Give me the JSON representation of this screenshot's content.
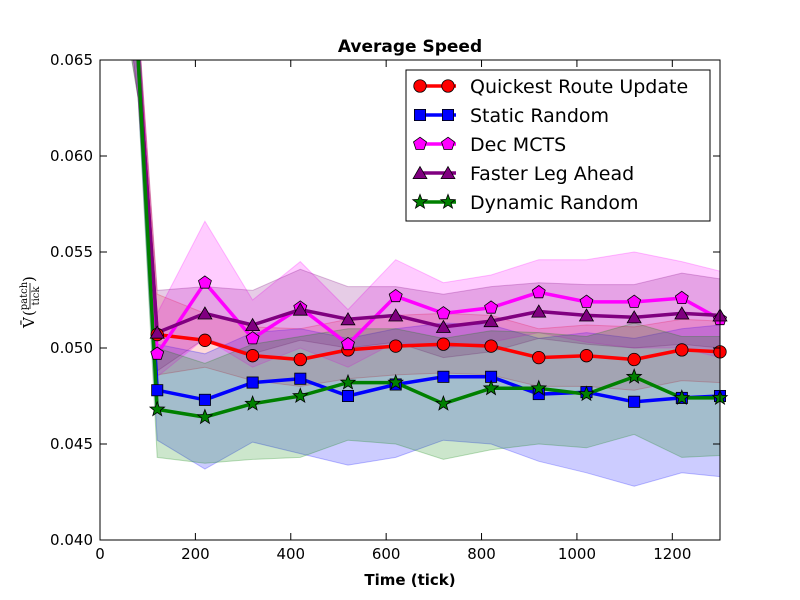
{
  "chart_data": {
    "type": "line",
    "title": "Average Speed",
    "xlabel": "Time (tick)",
    "ylabel": {
      "symbol": "V̄",
      "numerator": "patch",
      "denominator": "tick"
    },
    "xlim": [
      0,
      1300
    ],
    "ylim": [
      0.04,
      0.065
    ],
    "xticks": [
      0,
      200,
      400,
      600,
      800,
      1000,
      1200
    ],
    "yticks": [
      0.04,
      0.045,
      0.05,
      0.055,
      0.06,
      0.065
    ],
    "ytick_labels": [
      "0.040",
      "0.045",
      "0.050",
      "0.055",
      "0.060",
      "0.065"
    ],
    "legend_position": "top-right",
    "x": [
      120,
      220,
      320,
      420,
      520,
      620,
      720,
      820,
      920,
      1020,
      1120,
      1220,
      1300
    ],
    "series": [
      {
        "name": "Quickest Route Update",
        "color": "#ff0000",
        "marker": "circle",
        "start": [
          [
            60,
            0.069
          ],
          [
            80,
            0.065
          ]
        ],
        "values": [
          0.0507,
          0.0504,
          0.0496,
          0.0494,
          0.0499,
          0.0501,
          0.0502,
          0.0501,
          0.0495,
          0.0496,
          0.0494,
          0.0499,
          0.0498
        ],
        "lower": [
          0.0486,
          0.049,
          0.0483,
          0.048,
          0.0484,
          0.0486,
          0.0487,
          0.0486,
          0.048,
          0.048,
          0.0478,
          0.0483,
          0.0482
        ],
        "upper": [
          0.0528,
          0.0518,
          0.0511,
          0.051,
          0.0515,
          0.0517,
          0.0518,
          0.0517,
          0.051,
          0.0512,
          0.0511,
          0.0515,
          0.0514
        ],
        "band_opacity": 0.15
      },
      {
        "name": "Static Random",
        "color": "#0000ff",
        "marker": "square",
        "start": [
          [
            60,
            0.069
          ],
          [
            80,
            0.065
          ]
        ],
        "values": [
          0.0478,
          0.0473,
          0.0482,
          0.0484,
          0.0475,
          0.0481,
          0.0485,
          0.0485,
          0.0476,
          0.0477,
          0.0472,
          0.0474,
          0.0475
        ],
        "lower": [
          0.0452,
          0.0437,
          0.0451,
          0.0445,
          0.0439,
          0.0443,
          0.0452,
          0.045,
          0.0441,
          0.0435,
          0.0428,
          0.0435,
          0.0433
        ],
        "upper": [
          0.0502,
          0.0497,
          0.0508,
          0.051,
          0.0505,
          0.051,
          0.0513,
          0.0512,
          0.0505,
          0.0508,
          0.0505,
          0.051,
          0.0512
        ],
        "band_opacity": 0.2
      },
      {
        "name": "Dec MCTS",
        "color": "#ff00ff",
        "marker": "pentagon",
        "start": [
          [
            60,
            0.069
          ],
          [
            80,
            0.065
          ]
        ],
        "values": [
          0.0497,
          0.0534,
          0.0505,
          0.0521,
          0.0502,
          0.0527,
          0.0518,
          0.0521,
          0.0529,
          0.0524,
          0.0524,
          0.0526,
          0.0515
        ],
        "lower": [
          0.0485,
          0.0505,
          0.049,
          0.05,
          0.049,
          0.0503,
          0.05,
          0.0503,
          0.0508,
          0.0503,
          0.05,
          0.05,
          0.0495
        ],
        "upper": [
          0.0518,
          0.0566,
          0.0525,
          0.0545,
          0.052,
          0.0546,
          0.0534,
          0.0538,
          0.0546,
          0.0546,
          0.055,
          0.0545,
          0.054
        ],
        "band_opacity": 0.2
      },
      {
        "name": "Faster Leg Ahead",
        "color": "#800080",
        "marker": "triangle",
        "start": [
          [
            60,
            0.068
          ],
          [
            80,
            0.065
          ]
        ],
        "values": [
          0.0508,
          0.0518,
          0.0512,
          0.052,
          0.0515,
          0.0517,
          0.0511,
          0.0514,
          0.0519,
          0.0517,
          0.0516,
          0.0518,
          0.0517
        ],
        "lower": [
          0.0488,
          0.0505,
          0.0497,
          0.0504,
          0.05,
          0.0503,
          0.0495,
          0.0498,
          0.0505,
          0.0502,
          0.05,
          0.0502,
          0.05
        ],
        "upper": [
          0.053,
          0.0532,
          0.053,
          0.0541,
          0.0532,
          0.0532,
          0.0528,
          0.0532,
          0.0534,
          0.0533,
          0.0533,
          0.0539,
          0.0536
        ],
        "band_opacity": 0.2
      },
      {
        "name": "Dynamic Random",
        "color": "#008000",
        "marker": "star",
        "start": [
          [
            60,
            0.068
          ],
          [
            80,
            0.065
          ]
        ],
        "values": [
          0.0468,
          0.0464,
          0.0471,
          0.0475,
          0.0482,
          0.0482,
          0.0471,
          0.0479,
          0.0479,
          0.0476,
          0.0485,
          0.0474,
          0.0474
        ],
        "lower": [
          0.0443,
          0.044,
          0.0442,
          0.0443,
          0.0452,
          0.045,
          0.0442,
          0.0447,
          0.045,
          0.0448,
          0.0455,
          0.0443,
          0.0444
        ],
        "upper": [
          0.05,
          0.0492,
          0.0502,
          0.0506,
          0.051,
          0.051,
          0.0505,
          0.0509,
          0.0508,
          0.0506,
          0.0513,
          0.0506,
          0.0506
        ],
        "band_opacity": 0.2
      }
    ]
  }
}
